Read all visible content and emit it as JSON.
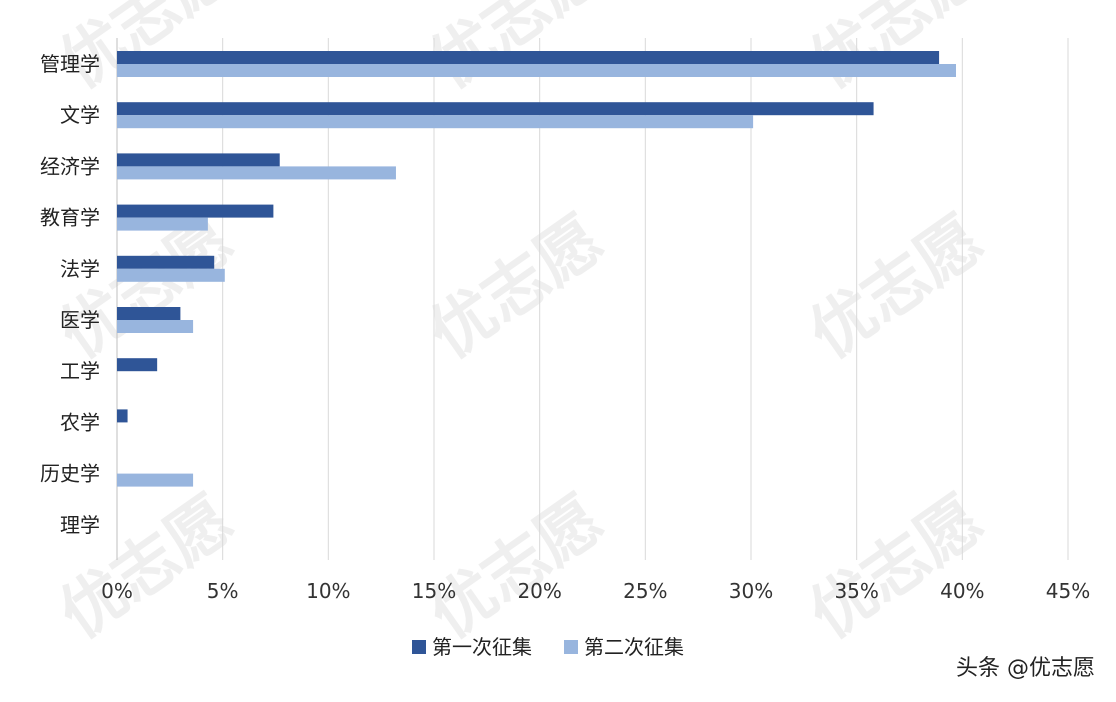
{
  "chart_data": {
    "type": "bar",
    "orientation": "horizontal",
    "categories": [
      "管理学",
      "文学",
      "经济学",
      "教育学",
      "法学",
      "医学",
      "工学",
      "农学",
      "历史学",
      "理学"
    ],
    "series": [
      {
        "name": "第一次征集",
        "color": "#2f5597",
        "values": [
          38.9,
          35.8,
          7.7,
          7.4,
          4.6,
          3.0,
          1.9,
          0.5,
          0,
          0
        ]
      },
      {
        "name": "第二次征集",
        "color": "#98b5de",
        "values": [
          39.7,
          30.1,
          13.2,
          4.3,
          5.1,
          3.6,
          0,
          0,
          3.6,
          0
        ]
      }
    ],
    "xlim": [
      0,
      45
    ],
    "xticks": [
      "0%",
      "5%",
      "10%",
      "15%",
      "20%",
      "25%",
      "30%",
      "35%",
      "40%",
      "45%"
    ],
    "grid": true,
    "legend_position": "bottom"
  },
  "credit": "头条 @优志愿",
  "watermark": "优志愿"
}
